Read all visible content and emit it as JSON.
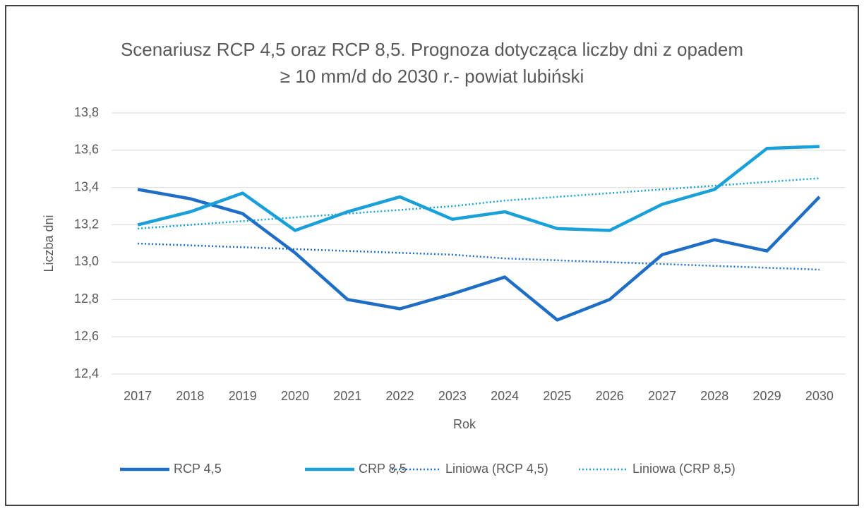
{
  "chart_data": {
    "type": "line",
    "title": [
      "Scenariusz RCP 4,5 oraz RCP 8,5. Prognoza dotycząca liczby dni z opadem",
      "≥ 10 mm/d do 2030 r.- powiat lubiński"
    ],
    "x_label": "Rok",
    "y_label": "Liczba dni",
    "categories": [
      "2017",
      "2018",
      "2019",
      "2020",
      "2021",
      "2022",
      "2023",
      "2024",
      "2025",
      "2026",
      "2027",
      "2028",
      "2029",
      "2030"
    ],
    "series": [
      {
        "name": "RCP 4,5",
        "color": "#1f6ec6",
        "dash": "solid",
        "values": [
          13.39,
          13.34,
          13.26,
          13.05,
          12.8,
          12.75,
          12.83,
          12.92,
          12.69,
          12.8,
          13.04,
          13.12,
          13.06,
          13.35
        ]
      },
      {
        "name": "CRP 8,5",
        "color": "#1aa0d9",
        "dash": "solid",
        "values": [
          13.2,
          13.27,
          13.37,
          13.17,
          13.27,
          13.35,
          13.23,
          13.27,
          13.18,
          13.17,
          13.31,
          13.39,
          13.61,
          13.62
        ]
      },
      {
        "name": "Liniowa (RCP 4,5)",
        "color": "#1f6ec6",
        "dash": "dotted",
        "values": [
          13.1,
          13.09,
          13.08,
          13.07,
          13.06,
          13.05,
          13.04,
          13.02,
          13.01,
          13.0,
          12.99,
          12.98,
          12.97,
          12.96
        ]
      },
      {
        "name": "Liniowa (CRP 8,5)",
        "color": "#1aa0d9",
        "dash": "dotted",
        "values": [
          13.18,
          13.2,
          13.22,
          13.24,
          13.26,
          13.28,
          13.3,
          13.33,
          13.35,
          13.37,
          13.39,
          13.41,
          13.43,
          13.45
        ]
      }
    ],
    "ylim": [
      12.4,
      13.8
    ],
    "yticks": [
      {
        "value": 12.4,
        "label": "12,4"
      },
      {
        "value": 12.6,
        "label": "12,6"
      },
      {
        "value": 12.8,
        "label": "12,8"
      },
      {
        "value": 13.0,
        "label": "13,0"
      },
      {
        "value": 13.2,
        "label": "13,2"
      },
      {
        "value": 13.4,
        "label": "13,4"
      },
      {
        "value": 13.6,
        "label": "13,6"
      },
      {
        "value": 13.8,
        "label": "13,8"
      }
    ],
    "grid": true,
    "legend": "bottom"
  }
}
